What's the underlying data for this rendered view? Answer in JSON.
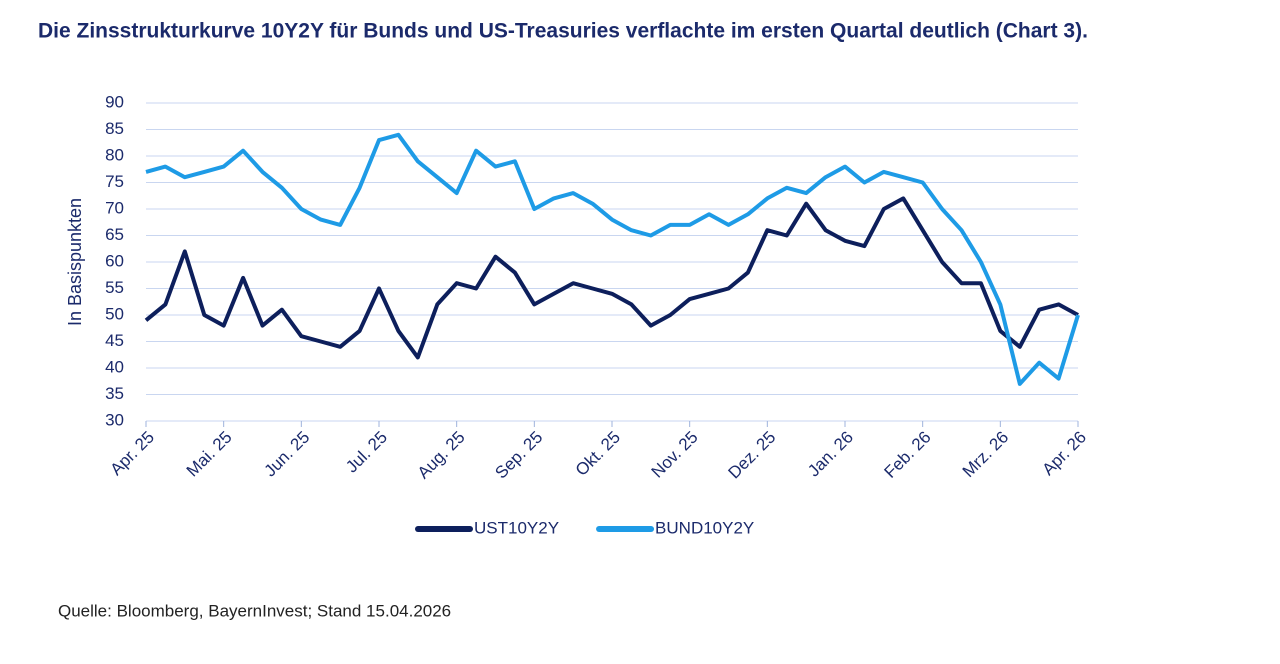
{
  "chart_data": {
    "type": "line",
    "title": "Die Zinsstrukturkurve 10Y2Y für Bunds und US-Treasuries verflachte im ersten Quartal deutlich (Chart 3).",
    "y_label": "In Basispunkten",
    "source": "Quelle: Bloomberg, BayernInvest; Stand 15.04.2026",
    "categories": [
      "Apr. 25",
      null,
      null,
      null,
      "Mai. 25",
      null,
      null,
      null,
      "Jun. 25",
      null,
      null,
      null,
      "Jul. 25",
      null,
      null,
      null,
      "Aug. 25",
      null,
      null,
      null,
      "Sep. 25",
      null,
      null,
      null,
      "Okt. 25",
      null,
      null,
      null,
      "Nov. 25",
      null,
      null,
      null,
      "Dez. 25",
      null,
      null,
      null,
      "Jan. 26",
      null,
      null,
      null,
      "Feb. 26",
      null,
      null,
      null,
      "Mrz. 26",
      null,
      null,
      null,
      "Apr. 26"
    ],
    "series": [
      {
        "name": "UST10Y2Y",
        "color": "#0d1f5c",
        "values": [
          49,
          52,
          62,
          50,
          48,
          57,
          48,
          51,
          46,
          45,
          44,
          47,
          55,
          47,
          42,
          52,
          56,
          55,
          61,
          58,
          52,
          54,
          56,
          55,
          54,
          52,
          48,
          50,
          53,
          54,
          55,
          58,
          66,
          65,
          71,
          66,
          64,
          63,
          70,
          72,
          66,
          60,
          56,
          56,
          47,
          44,
          51,
          52,
          50
        ]
      },
      {
        "name": "BUND10Y2Y",
        "color": "#1e9be6",
        "values": [
          77,
          78,
          76,
          77,
          78,
          81,
          77,
          74,
          70,
          68,
          67,
          74,
          83,
          84,
          79,
          76,
          73,
          81,
          78,
          79,
          70,
          72,
          73,
          71,
          68,
          66,
          65,
          67,
          67,
          69,
          67,
          69,
          72,
          74,
          73,
          76,
          78,
          75,
          77,
          76,
          75,
          70,
          66,
          60,
          52,
          37,
          41,
          38,
          50
        ]
      }
    ],
    "ylim": [
      30,
      90
    ],
    "yticks": [
      30,
      35,
      40,
      45,
      50,
      55,
      60,
      65,
      70,
      75,
      80,
      85,
      90
    ],
    "grid": true
  }
}
